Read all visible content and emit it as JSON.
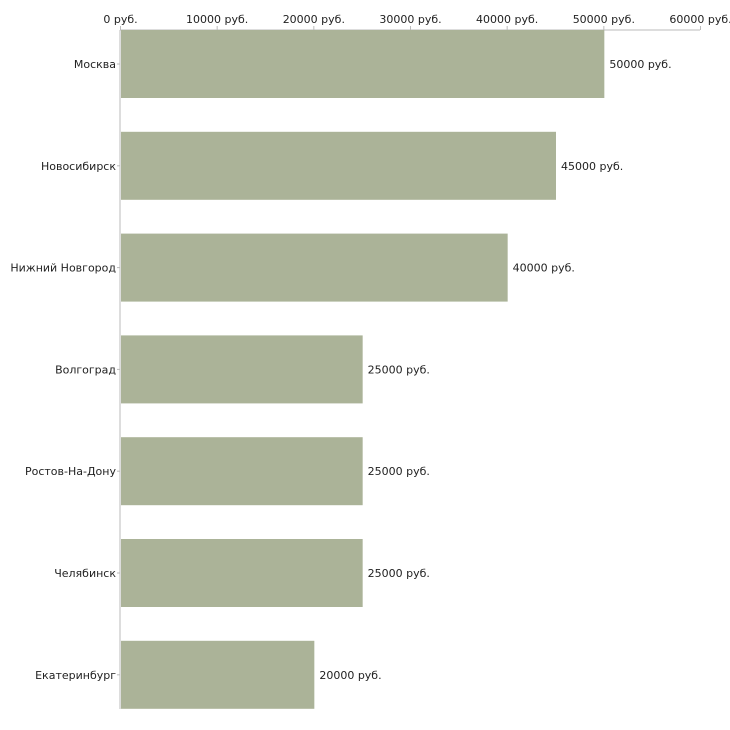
{
  "chart_data": {
    "type": "bar",
    "orientation": "horizontal",
    "categories": [
      "Москва",
      "Новосибирск",
      "Нижний Новгород",
      "Волгоград",
      "Ростов-На-Дону",
      "Челябинск",
      "Екатеринбург"
    ],
    "values": [
      50000,
      45000,
      40000,
      25000,
      25000,
      25000,
      20000
    ],
    "value_labels": [
      "50000 руб.",
      "45000 руб.",
      "40000 руб.",
      "25000 руб.",
      "25000 руб.",
      "25000 руб.",
      "20000 руб."
    ],
    "xlim": [
      0,
      60000
    ],
    "x_ticks": [
      0,
      10000,
      20000,
      30000,
      40000,
      50000,
      60000
    ],
    "x_tick_labels": [
      "0 руб.",
      "10000 руб.",
      "20000 руб.",
      "30000 руб.",
      "40000 руб.",
      "50000 руб.",
      "60000 руб."
    ],
    "x_axis_position": "top",
    "title": "",
    "xlabel": "",
    "ylabel": "",
    "grid": false,
    "bar_color": "#abb398",
    "axis_color": "#bbbbbb"
  }
}
